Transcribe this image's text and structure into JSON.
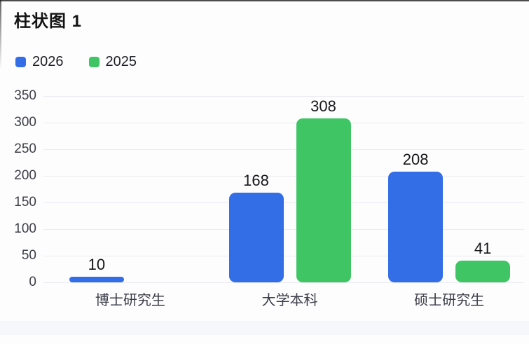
{
  "chart": {
    "title": "柱状图 1",
    "legend": [
      {
        "label": "2026",
        "color": "#336ee6"
      },
      {
        "label": "2025",
        "color": "#3fc564"
      }
    ]
  },
  "chart_data": {
    "type": "bar",
    "title": "柱状图 1",
    "categories": [
      "博士研究生",
      "大学本科",
      "硕士研究生"
    ],
    "series": [
      {
        "name": "2026",
        "color": "#336ee6",
        "values": [
          10,
          168,
          208
        ]
      },
      {
        "name": "2025",
        "color": "#3fc564",
        "values": [
          null,
          308,
          41
        ]
      }
    ],
    "ylim": [
      0,
      350
    ],
    "yticks": [
      0,
      50,
      100,
      150,
      200,
      250,
      300,
      350
    ],
    "grid": "horizontal",
    "legend_position": "top-left",
    "value_labels": true
  }
}
